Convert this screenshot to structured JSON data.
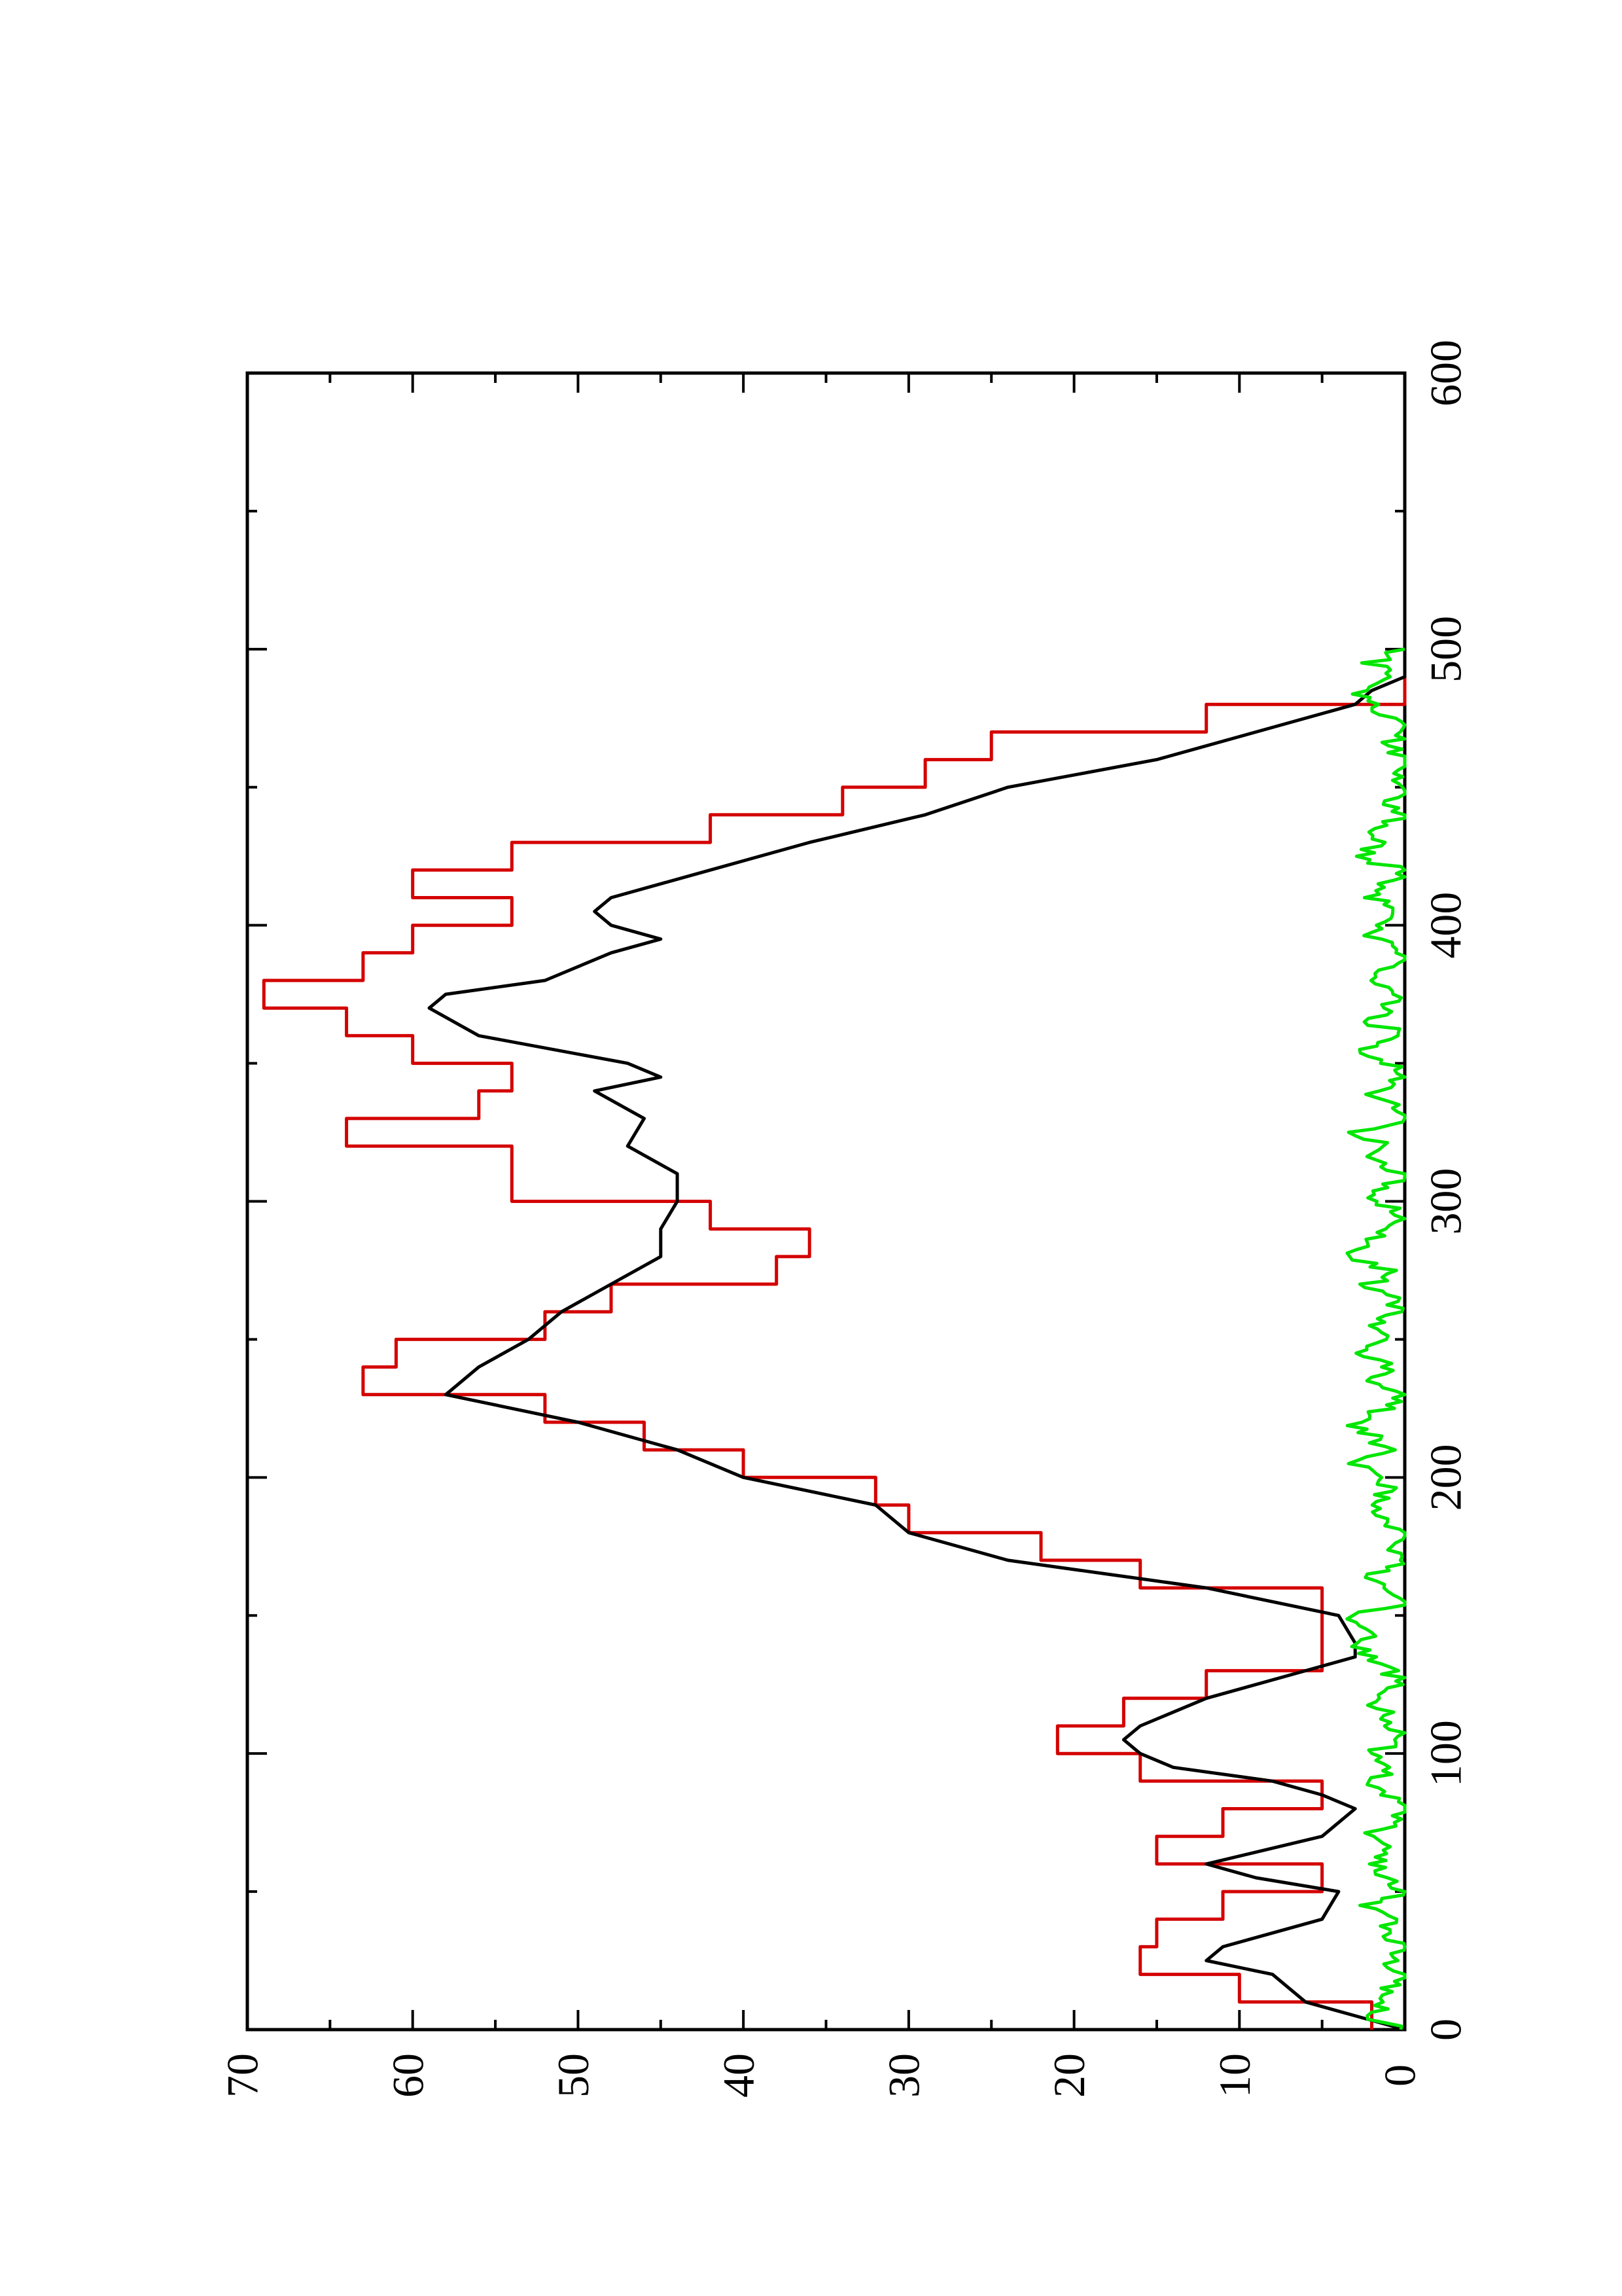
{
  "chart_data": {
    "type": "line",
    "orientation": "rotated-90-ccw",
    "title": "",
    "xlabel": "",
    "ylabel": "",
    "xlim": [
      0,
      600
    ],
    "ylim": [
      0,
      70
    ],
    "grid": false,
    "x_ticks": [
      "0",
      "100",
      "200",
      "300",
      "400",
      "500",
      "600"
    ],
    "y_ticks": [
      "0",
      "10",
      "20",
      "30",
      "40",
      "50",
      "60",
      "70"
    ],
    "series": [
      {
        "color": "#d40000",
        "step": true,
        "x": [
          0,
          10,
          20,
          30,
          40,
          50,
          60,
          70,
          80,
          90,
          100,
          110,
          120,
          130,
          140,
          150,
          160,
          170,
          180,
          190,
          200,
          210,
          220,
          230,
          240,
          250,
          260,
          270,
          280,
          290,
          300,
          310,
          320,
          330,
          340,
          350,
          360,
          370,
          380,
          390,
          400,
          410,
          420,
          430,
          440,
          450,
          460,
          470,
          480,
          490,
          500
        ],
        "y": [
          2,
          10,
          16,
          15,
          11,
          5,
          15,
          11,
          5,
          16,
          21,
          17,
          12,
          5,
          5,
          5,
          16,
          22,
          30,
          32,
          40,
          46,
          52,
          63,
          61,
          52,
          48,
          38,
          36,
          42,
          54,
          54,
          64,
          56,
          54,
          60,
          64,
          69,
          63,
          60,
          54,
          60,
          54,
          42,
          34,
          29,
          25,
          12,
          0,
          0,
          0
        ]
      },
      {
        "color": "#000000",
        "step": false,
        "x": [
          0,
          5,
          10,
          20,
          25,
          30,
          40,
          50,
          55,
          60,
          70,
          80,
          85,
          90,
          95,
          100,
          105,
          110,
          120,
          130,
          135,
          140,
          150,
          160,
          165,
          170,
          180,
          190,
          200,
          210,
          215,
          220,
          230,
          240,
          250,
          260,
          270,
          280,
          290,
          300,
          310,
          320,
          330,
          340,
          345,
          350,
          360,
          370,
          375,
          380,
          390,
          395,
          400,
          405,
          410,
          420,
          430,
          440,
          450,
          460,
          470,
          480,
          485,
          490,
          500
        ],
        "y": [
          0,
          3,
          6,
          8,
          12,
          11,
          5,
          4,
          9,
          12,
          5,
          3,
          5,
          8,
          14,
          16,
          17,
          16,
          12,
          6,
          3,
          3,
          4,
          12,
          18,
          24,
          30,
          32,
          40,
          44,
          47,
          50,
          58,
          56,
          53,
          51,
          48,
          45,
          45,
          44,
          44,
          47,
          46,
          49,
          45,
          47,
          56,
          59,
          58,
          52,
          48,
          45,
          48,
          49,
          48,
          42,
          36,
          29,
          24,
          15,
          9,
          3,
          2,
          0,
          0
        ]
      },
      {
        "color": "#00e600",
        "step": false,
        "noise": true,
        "x": [
          0,
          5,
          10,
          15,
          20,
          25,
          30,
          35,
          40,
          45,
          50,
          55,
          60,
          65,
          70,
          75,
          80,
          85,
          90,
          95,
          100,
          105,
          110,
          115,
          120,
          125,
          130,
          135,
          140,
          145,
          150,
          155,
          160,
          165,
          170,
          175,
          180,
          185,
          190,
          195,
          200,
          205,
          210,
          215,
          220,
          225,
          230,
          235,
          240,
          245,
          250,
          255,
          260,
          265,
          270,
          275,
          280,
          285,
          290,
          295,
          300,
          305,
          310,
          315,
          320,
          325,
          330,
          335,
          340,
          345,
          350,
          355,
          360,
          365,
          370,
          375,
          380,
          385,
          390,
          395,
          400,
          405,
          410,
          415,
          420,
          425,
          430,
          435,
          440,
          445,
          450,
          455,
          460,
          465,
          470,
          475,
          480,
          485,
          490,
          495,
          500
        ],
        "y": [
          0,
          2,
          1,
          1,
          0,
          1,
          0,
          1,
          1,
          2,
          0,
          1,
          2,
          1,
          2,
          1,
          0,
          1,
          2,
          1,
          2,
          0,
          1,
          1,
          2,
          0,
          1,
          2,
          3,
          2,
          3,
          0,
          1,
          2,
          0,
          1,
          0,
          1,
          2,
          1,
          2,
          3,
          1,
          2,
          3,
          1,
          0,
          2,
          1,
          3,
          1,
          2,
          0,
          1,
          2,
          1,
          3,
          2,
          1,
          0,
          2,
          1,
          0,
          2,
          1,
          3,
          0,
          1,
          2,
          0,
          1,
          3,
          0,
          2,
          1,
          0,
          2,
          1,
          0,
          2,
          1,
          0,
          2,
          1,
          0,
          3,
          1,
          2,
          0,
          1,
          0,
          1,
          0,
          1,
          0,
          1,
          2,
          3,
          1,
          2,
          0
        ]
      }
    ]
  }
}
